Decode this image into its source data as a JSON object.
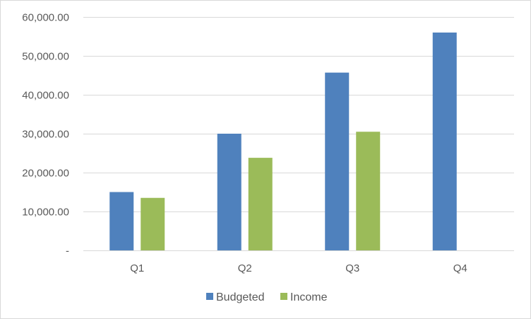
{
  "chart_data": {
    "type": "bar",
    "categories": [
      "Q1",
      "Q2",
      "Q3",
      "Q4"
    ],
    "series": [
      {
        "name": "Budgeted",
        "values": [
          15000,
          30000,
          45700,
          56000
        ],
        "color": "#4f81bd"
      },
      {
        "name": "Income",
        "values": [
          13500,
          23800,
          30500,
          null
        ],
        "color": "#9bbb59"
      }
    ],
    "y_ticks": [
      {
        "value": 0,
        "label": "-"
      },
      {
        "value": 10000,
        "label": "10,000.00"
      },
      {
        "value": 20000,
        "label": "20,000.00"
      },
      {
        "value": 30000,
        "label": "30,000.00"
      },
      {
        "value": 40000,
        "label": "40,000.00"
      },
      {
        "value": 50000,
        "label": "50,000.00"
      },
      {
        "value": 60000,
        "label": "60,000.00"
      }
    ],
    "ylim": [
      0,
      60000
    ],
    "title": "",
    "xlabel": "",
    "ylabel": "",
    "grid": true,
    "legend_position": "bottom",
    "gridline_color": "#d9d9d9",
    "text_color": "#595959"
  }
}
